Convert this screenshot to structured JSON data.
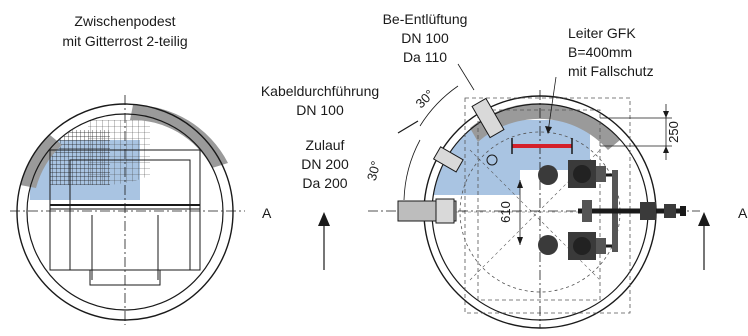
{
  "left_view": {
    "title_line1": "Zwischenpodest",
    "title_line2": "mit Gitterrost 2-teilig",
    "section_label": "A"
  },
  "right_view": {
    "vent_line1": "Be-Entlüftung",
    "vent_line2": "DN 100",
    "vent_line3": "Da 110",
    "cable_line1": "Kabeldurchführung",
    "cable_line2": "DN 100",
    "inlet_line1": "Zulauf",
    "inlet_line2": "DN 200",
    "inlet_line3": "Da 200",
    "ladder_line1": "Leiter GFK",
    "ladder_line2": "B=400mm",
    "ladder_line3": "mit Fallschutz",
    "angle_upper": "30°",
    "angle_lower": "30°",
    "dim_vertical": "250",
    "dim_depth": "610",
    "section_label_left": "A",
    "section_label_right": "A"
  },
  "colors": {
    "line": "#1a1a1a",
    "highlight_blue": "#a9c4e2",
    "highlight_gray": "#9a9a9a",
    "ladder_red": "#d4202a"
  }
}
